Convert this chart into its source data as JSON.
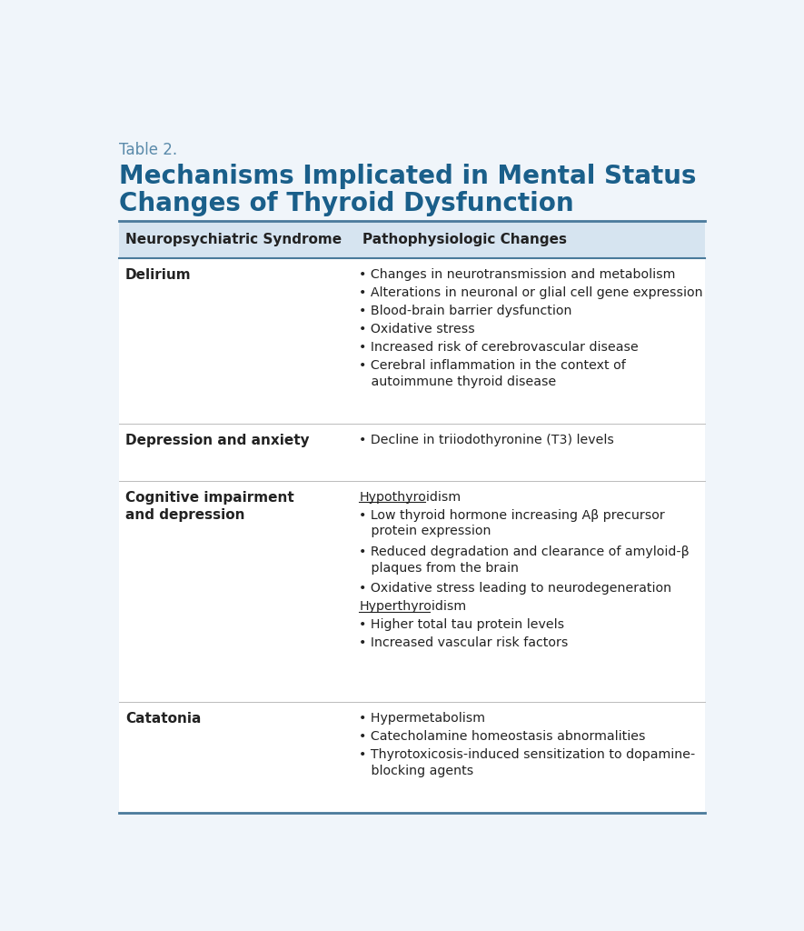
{
  "table2_label": "Table 2.",
  "title_line1": "Mechanisms Implicated in Mental Status",
  "title_line2": "Changes of Thyroid Dysfunction",
  "header_col1": "Neuropsychiatric Syndrome",
  "header_col2": "Pathophysiologic Changes",
  "bg_color": "#f0f5fa",
  "header_bg": "#d6e4f0",
  "title_color": "#1a5f8a",
  "table2_color": "#5a8aaa",
  "border_color": "#4a7a9b",
  "text_color": "#222222",
  "bullet": "•",
  "col_split": 0.38,
  "rows": [
    {
      "syndrome": "Delirium",
      "content": [
        {
          "type": "bullet",
          "text": "Changes in neurotransmission and metabolism"
        },
        {
          "type": "bullet",
          "text": "Alterations in neuronal or glial cell gene expression"
        },
        {
          "type": "bullet",
          "text": "Blood-brain barrier dysfunction"
        },
        {
          "type": "bullet",
          "text": "Oxidative stress"
        },
        {
          "type": "bullet",
          "text": "Increased risk of cerebrovascular disease"
        },
        {
          "type": "bullet",
          "text": "Cerebral inflammation in the context of\n   autoimmune thyroid disease"
        }
      ]
    },
    {
      "syndrome": "Depression and anxiety",
      "content": [
        {
          "type": "bullet",
          "text": "Decline in triiodothyronine (T3) levels"
        }
      ]
    },
    {
      "syndrome": "Cognitive impairment\nand depression",
      "content": [
        {
          "type": "underline",
          "text": "Hypothyroidism"
        },
        {
          "type": "bullet",
          "text": "Low thyroid hormone increasing Aβ precursor\n   protein expression"
        },
        {
          "type": "bullet",
          "text": "Reduced degradation and clearance of amyloid-β\n   plaques from the brain"
        },
        {
          "type": "bullet",
          "text": "Oxidative stress leading to neurodegeneration"
        },
        {
          "type": "underline",
          "text": "Hyperthyroidism"
        },
        {
          "type": "bullet",
          "text": "Higher total tau protein levels"
        },
        {
          "type": "bullet",
          "text": "Increased vascular risk factors"
        }
      ]
    },
    {
      "syndrome": "Catatonia",
      "content": [
        {
          "type": "bullet",
          "text": "Hypermetabolism"
        },
        {
          "type": "bullet",
          "text": "Catecholamine homeostasis abnormalities"
        },
        {
          "type": "bullet",
          "text": "Thyrotoxicosis-induced sensitization to dopamine-\n   blocking agents"
        }
      ]
    }
  ]
}
